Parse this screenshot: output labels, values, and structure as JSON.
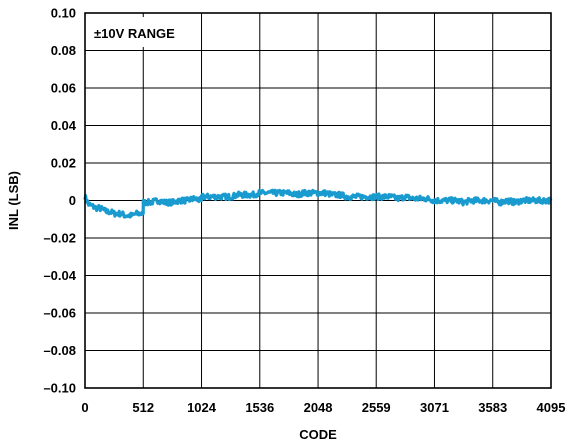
{
  "chart_data": {
    "type": "line",
    "xlabel": "CODE",
    "ylabel": "INL (LSB)",
    "annotation": "±10V RANGE",
    "xlim": [
      0,
      4095
    ],
    "ylim": [
      -0.1,
      0.1
    ],
    "x_ticks": [
      0,
      512,
      1024,
      1536,
      2048,
      2559,
      3071,
      3583,
      4095
    ],
    "x_tick_labels": [
      "0",
      "512",
      "1024",
      "1536",
      "2048",
      "2559",
      "3071",
      "3583",
      "4095"
    ],
    "y_ticks": [
      0.1,
      0.08,
      0.06,
      0.04,
      0.02,
      0,
      -0.02,
      -0.04,
      -0.06,
      -0.08,
      -0.1
    ],
    "y_tick_labels": [
      "0.10",
      "0.08",
      "0.06",
      "0.04",
      "0.02",
      "0",
      "–0.02",
      "–0.04",
      "–0.06",
      "–0.08",
      "–0.10"
    ],
    "grid": true,
    "line_color": "#1a9bd0",
    "series": [
      {
        "x": [
          0,
          16,
          32,
          64,
          96,
          128,
          160,
          192,
          224,
          256,
          288,
          320,
          352,
          384,
          416,
          448,
          480,
          511,
          512,
          544,
          576,
          640,
          704,
          768,
          832,
          896,
          960,
          1023,
          1024,
          1088,
          1152,
          1216,
          1280,
          1344,
          1408,
          1472,
          1536,
          1600,
          1664,
          1728,
          1792,
          1856,
          1920,
          1984,
          2048,
          2112,
          2176,
          2240,
          2304,
          2368,
          2432,
          2496,
          2559,
          2624,
          2688,
          2752,
          2816,
          2880,
          2944,
          3008,
          3071,
          3136,
          3200,
          3264,
          3328,
          3392,
          3456,
          3520,
          3583,
          3648,
          3712,
          3776,
          3840,
          3904,
          3968,
          4032,
          4095
        ],
        "values": [
          0.002,
          0.0,
          -0.002,
          -0.003,
          -0.004,
          -0.004,
          -0.005,
          -0.006,
          -0.006,
          -0.007,
          -0.007,
          -0.007,
          -0.008,
          -0.008,
          -0.008,
          -0.007,
          -0.007,
          -0.007,
          -0.001,
          -0.001,
          -0.001,
          0.0,
          -0.001,
          -0.001,
          0.0,
          0.0,
          0.001,
          0.0,
          0.002,
          0.002,
          0.002,
          0.002,
          0.002,
          0.003,
          0.003,
          0.003,
          0.004,
          0.004,
          0.004,
          0.004,
          0.004,
          0.003,
          0.004,
          0.004,
          0.004,
          0.004,
          0.003,
          0.003,
          0.002,
          0.002,
          0.002,
          0.002,
          0.002,
          0.002,
          0.002,
          0.001,
          0.002,
          0.001,
          0.001,
          0.001,
          0.0,
          0.0,
          0.0,
          0.0,
          -0.001,
          0.0,
          0.0,
          0.0,
          0.0,
          -0.001,
          0.0,
          -0.001,
          0.0,
          0.0,
          0.0,
          0.0,
          0.0
        ]
      }
    ]
  }
}
